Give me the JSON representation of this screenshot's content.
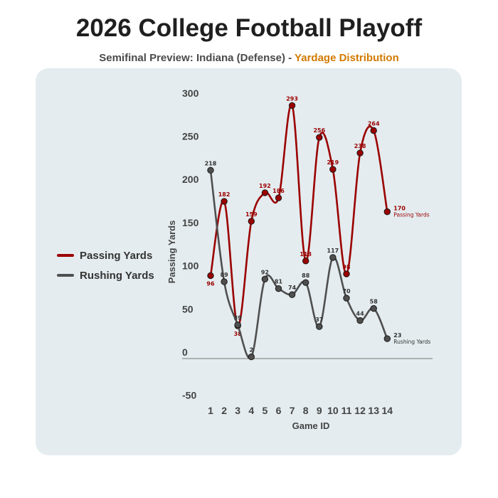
{
  "header": {
    "title": "2026 College Football Playoff",
    "subtitle_main": "Semifinal Preview: Indiana (Defense) - ",
    "subtitle_accent": "Yardage Distribution"
  },
  "colors": {
    "passing": "#9b0000",
    "rushing": "#4f4f4f",
    "accent": "#d17a00",
    "panel": "#e4ecef"
  },
  "chart_data": {
    "type": "line",
    "title": "2026 College Football Playoff",
    "subtitle": "Semifinal Preview: Indiana (Defense) - Yardage Distribution",
    "xlabel": "Game ID",
    "ylabel": "Passing Yards",
    "x": [
      1,
      2,
      3,
      4,
      5,
      6,
      7,
      8,
      9,
      10,
      11,
      12,
      13,
      14
    ],
    "yticks": [
      -50,
      0,
      50,
      100,
      150,
      200,
      250,
      300
    ],
    "ylim": [
      -50,
      300
    ],
    "legend_position": "left",
    "grid": false,
    "series": [
      {
        "name": "Passing Yards",
        "end_label": "Passing Yards",
        "values": [
          96,
          182,
          38,
          159,
          192,
          186,
          293,
          113,
          256,
          219,
          98,
          238,
          264,
          170
        ]
      },
      {
        "name": "Rushing Yards",
        "end_label": "Rushing Yards",
        "values": [
          218,
          89,
          39,
          2,
          92,
          81,
          74,
          88,
          37,
          117,
          70,
          44,
          58,
          23
        ]
      }
    ]
  }
}
